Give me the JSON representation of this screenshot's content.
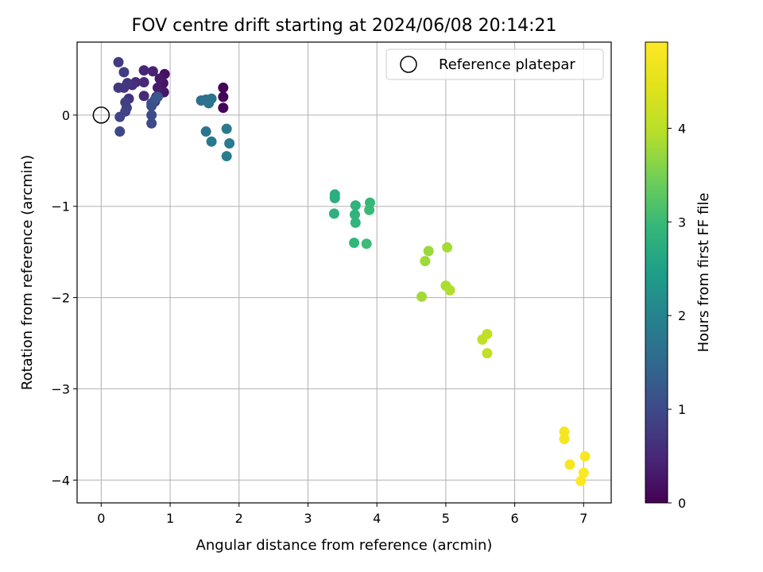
{
  "chart_data": {
    "type": "scatter",
    "title": "FOV centre drift starting at 2024/06/08 20:14:21",
    "xlabel": "Angular distance from reference (arcmin)",
    "ylabel": "Rotation from reference (arcmin)",
    "colorbar_label": "Hours from first FF file",
    "xlim": [
      -0.35,
      7.4
    ],
    "ylim": [
      -4.25,
      0.8
    ],
    "clim": [
      0,
      4.92
    ],
    "colormap": "viridis",
    "grid": true,
    "legend_position": "top-right",
    "x_ticks": [
      0,
      1,
      2,
      3,
      4,
      5,
      6,
      7
    ],
    "y_ticks": [
      0,
      -1,
      -2,
      -3,
      -4
    ],
    "colorbar_ticks": [
      0,
      1,
      2,
      3,
      4
    ],
    "reference": {
      "name": "Reference platepar",
      "x": 0,
      "y": 0
    },
    "points": [
      {
        "x": 1.77,
        "y": 0.3,
        "h": 0.02
      },
      {
        "x": 1.77,
        "y": 0.2,
        "h": 0.04
      },
      {
        "x": 1.77,
        "y": 0.08,
        "h": 0.06
      },
      {
        "x": 0.92,
        "y": 0.45,
        "h": 0.2
      },
      {
        "x": 0.9,
        "y": 0.35,
        "h": 0.23
      },
      {
        "x": 0.91,
        "y": 0.25,
        "h": 0.26
      },
      {
        "x": 0.85,
        "y": 0.4,
        "h": 0.3
      },
      {
        "x": 0.82,
        "y": 0.3,
        "h": 0.33
      },
      {
        "x": 0.8,
        "y": 0.2,
        "h": 0.36
      },
      {
        "x": 0.78,
        "y": 0.15,
        "h": 0.4
      },
      {
        "x": 0.75,
        "y": 0.48,
        "h": 0.43
      },
      {
        "x": 0.62,
        "y": 0.49,
        "h": 0.47
      },
      {
        "x": 0.62,
        "y": 0.36,
        "h": 0.5
      },
      {
        "x": 0.62,
        "y": 0.21,
        "h": 0.53
      },
      {
        "x": 0.5,
        "y": 0.36,
        "h": 0.57
      },
      {
        "x": 0.45,
        "y": 0.33,
        "h": 0.6
      },
      {
        "x": 0.4,
        "y": 0.18,
        "h": 0.63
      },
      {
        "x": 0.38,
        "y": 0.35,
        "h": 0.67
      },
      {
        "x": 0.33,
        "y": 0.3,
        "h": 0.7
      },
      {
        "x": 0.25,
        "y": 0.3,
        "h": 0.73
      },
      {
        "x": 0.25,
        "y": 0.58,
        "h": 0.77
      },
      {
        "x": 0.33,
        "y": 0.47,
        "h": 0.8
      },
      {
        "x": 0.35,
        "y": 0.14,
        "h": 0.83
      },
      {
        "x": 0.37,
        "y": 0.08,
        "h": 0.87
      },
      {
        "x": 0.35,
        "y": 0.04,
        "h": 0.9
      },
      {
        "x": 0.27,
        "y": -0.02,
        "h": 0.93
      },
      {
        "x": 0.27,
        "y": -0.18,
        "h": 0.97
      },
      {
        "x": 0.73,
        "y": -0.09,
        "h": 1.0
      },
      {
        "x": 0.73,
        "y": 0.0,
        "h": 1.03
      },
      {
        "x": 0.73,
        "y": 0.1,
        "h": 1.07
      },
      {
        "x": 0.73,
        "y": 0.13,
        "h": 1.1
      },
      {
        "x": 0.78,
        "y": 0.17,
        "h": 1.15
      },
      {
        "x": 0.82,
        "y": 0.2,
        "h": 1.2
      },
      {
        "x": 1.45,
        "y": 0.16,
        "h": 1.6
      },
      {
        "x": 1.52,
        "y": 0.17,
        "h": 1.63
      },
      {
        "x": 1.56,
        "y": 0.13,
        "h": 1.67
      },
      {
        "x": 1.6,
        "y": 0.18,
        "h": 1.7
      },
      {
        "x": 1.52,
        "y": -0.18,
        "h": 1.73
      },
      {
        "x": 1.6,
        "y": -0.29,
        "h": 1.77
      },
      {
        "x": 1.82,
        "y": -0.15,
        "h": 1.8
      },
      {
        "x": 1.86,
        "y": -0.31,
        "h": 1.83
      },
      {
        "x": 1.82,
        "y": -0.45,
        "h": 1.87
      },
      {
        "x": 3.39,
        "y": -0.87,
        "h": 2.75
      },
      {
        "x": 3.39,
        "y": -0.91,
        "h": 2.78
      },
      {
        "x": 3.38,
        "y": -1.08,
        "h": 2.81
      },
      {
        "x": 3.69,
        "y": -0.99,
        "h": 2.84
      },
      {
        "x": 3.68,
        "y": -1.09,
        "h": 2.87
      },
      {
        "x": 3.69,
        "y": -1.18,
        "h": 2.9
      },
      {
        "x": 3.67,
        "y": -1.4,
        "h": 2.93
      },
      {
        "x": 3.9,
        "y": -0.96,
        "h": 2.96
      },
      {
        "x": 3.89,
        "y": -1.04,
        "h": 2.99
      },
      {
        "x": 3.85,
        "y": -1.41,
        "h": 3.02
      },
      {
        "x": 4.75,
        "y": -1.49,
        "h": 3.75
      },
      {
        "x": 4.7,
        "y": -1.6,
        "h": 3.78
      },
      {
        "x": 4.65,
        "y": -1.99,
        "h": 3.81
      },
      {
        "x": 5.02,
        "y": -1.45,
        "h": 3.84
      },
      {
        "x": 5.0,
        "y": -1.87,
        "h": 3.87
      },
      {
        "x": 5.06,
        "y": -1.92,
        "h": 3.9
      },
      {
        "x": 5.6,
        "y": -2.4,
        "h": 4.05
      },
      {
        "x": 5.53,
        "y": -2.46,
        "h": 4.08
      },
      {
        "x": 5.6,
        "y": -2.61,
        "h": 4.11
      },
      {
        "x": 6.72,
        "y": -3.47,
        "h": 4.78
      },
      {
        "x": 6.72,
        "y": -3.55,
        "h": 4.8
      },
      {
        "x": 6.8,
        "y": -3.83,
        "h": 4.83
      },
      {
        "x": 7.02,
        "y": -3.74,
        "h": 4.86
      },
      {
        "x": 7.0,
        "y": -3.92,
        "h": 4.89
      },
      {
        "x": 6.96,
        "y": -4.01,
        "h": 4.92
      }
    ]
  }
}
